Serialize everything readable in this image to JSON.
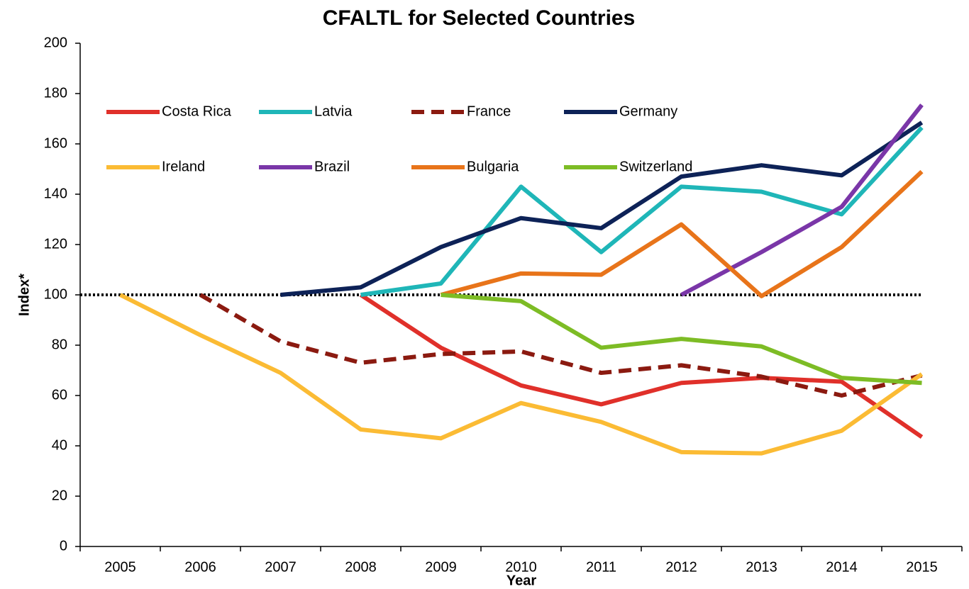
{
  "chart_data": {
    "type": "line",
    "title": "CFALTL for Selected Countries",
    "xlabel": "Year",
    "ylabel": "Index*",
    "categories": [
      "2005",
      "2006",
      "2007",
      "2008",
      "2009",
      "2010",
      "2011",
      "2012",
      "2013",
      "2014",
      "2015"
    ],
    "ylim": [
      0,
      200
    ],
    "yticks": [
      0,
      20,
      40,
      60,
      80,
      100,
      120,
      140,
      160,
      180,
      200
    ],
    "reference_line": 100,
    "series": [
      {
        "name": "Costa Rica",
        "color": "#e0302a",
        "values": [
          null,
          null,
          null,
          100,
          79,
          64,
          56.5,
          65,
          67,
          65.5,
          43.5
        ]
      },
      {
        "name": "Latvia",
        "color": "#1fb6b8",
        "values": [
          null,
          null,
          null,
          100,
          104.5,
          143,
          117,
          143,
          141,
          132,
          166.5
        ]
      },
      {
        "name": "France",
        "color": "#8b1a10",
        "dashed": true,
        "values": [
          null,
          100,
          81.5,
          73,
          76.5,
          77.5,
          69,
          72,
          67.5,
          60,
          68
        ]
      },
      {
        "name": "Germany",
        "color": "#0d2257",
        "values": [
          null,
          null,
          100,
          103,
          119,
          130.5,
          126.5,
          147,
          151.5,
          147.5,
          168.5
        ]
      },
      {
        "name": "Ireland",
        "color": "#fbbb34",
        "values": [
          100,
          84,
          69,
          46.5,
          43,
          57,
          49.5,
          37.5,
          37,
          46,
          68.5
        ]
      },
      {
        "name": "Brazil",
        "color": "#7a36a8",
        "values": [
          null,
          null,
          null,
          null,
          null,
          null,
          null,
          100,
          117,
          135,
          175.5
        ]
      },
      {
        "name": "Bulgaria",
        "color": "#e8741a",
        "values": [
          null,
          null,
          null,
          null,
          100,
          108.5,
          108,
          128,
          99.5,
          119,
          149
        ]
      },
      {
        "name": "Switzerland",
        "color": "#7dbc25",
        "values": [
          null,
          null,
          null,
          null,
          100,
          97.5,
          79,
          82.5,
          79.5,
          67,
          65
        ]
      }
    ]
  }
}
